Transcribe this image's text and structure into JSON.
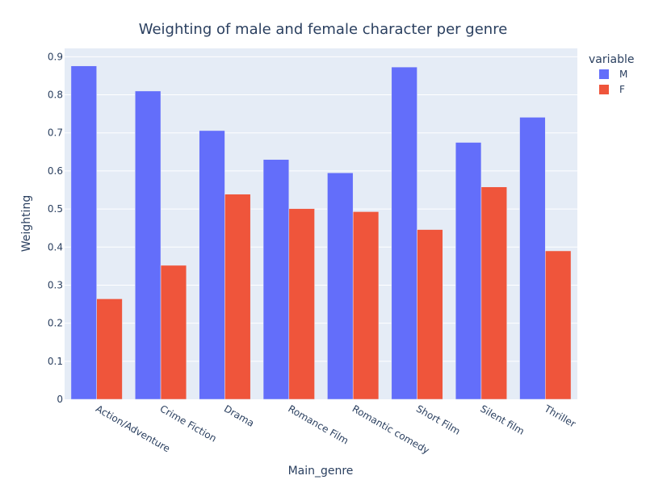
{
  "chart_data": {
    "type": "bar",
    "title": "Weighting of male and female character per genre",
    "xlabel": "Main_genre",
    "ylabel": "Weighting",
    "categories": [
      "Action/Adventure",
      "Crime Fiction",
      "Drama",
      "Romance Film",
      "Romantic comedy",
      "Short Film",
      "Silent film",
      "Thriller"
    ],
    "series": [
      {
        "name": "M",
        "values": [
          0.876,
          0.81,
          0.706,
          0.63,
          0.595,
          0.873,
          0.675,
          0.741
        ]
      },
      {
        "name": "F",
        "values": [
          0.264,
          0.352,
          0.539,
          0.501,
          0.493,
          0.446,
          0.558,
          0.39
        ]
      }
    ],
    "colors": {
      "M": "#636efa",
      "F": "#ef553b",
      "plot_bg": "#e5ecf6",
      "text": "#2a3f5f"
    },
    "ylim": [
      0,
      0.9
    ],
    "yticks": [
      0,
      0.1,
      0.2,
      0.3,
      0.4,
      0.5,
      0.6,
      0.7,
      0.8,
      0.9
    ],
    "ytick_labels": [
      "0",
      "0.1",
      "0.2",
      "0.3",
      "0.4",
      "0.5",
      "0.6",
      "0.7",
      "0.8",
      "0.9"
    ],
    "grid": true,
    "legend": {
      "title": "variable",
      "placement": "top-right"
    }
  }
}
